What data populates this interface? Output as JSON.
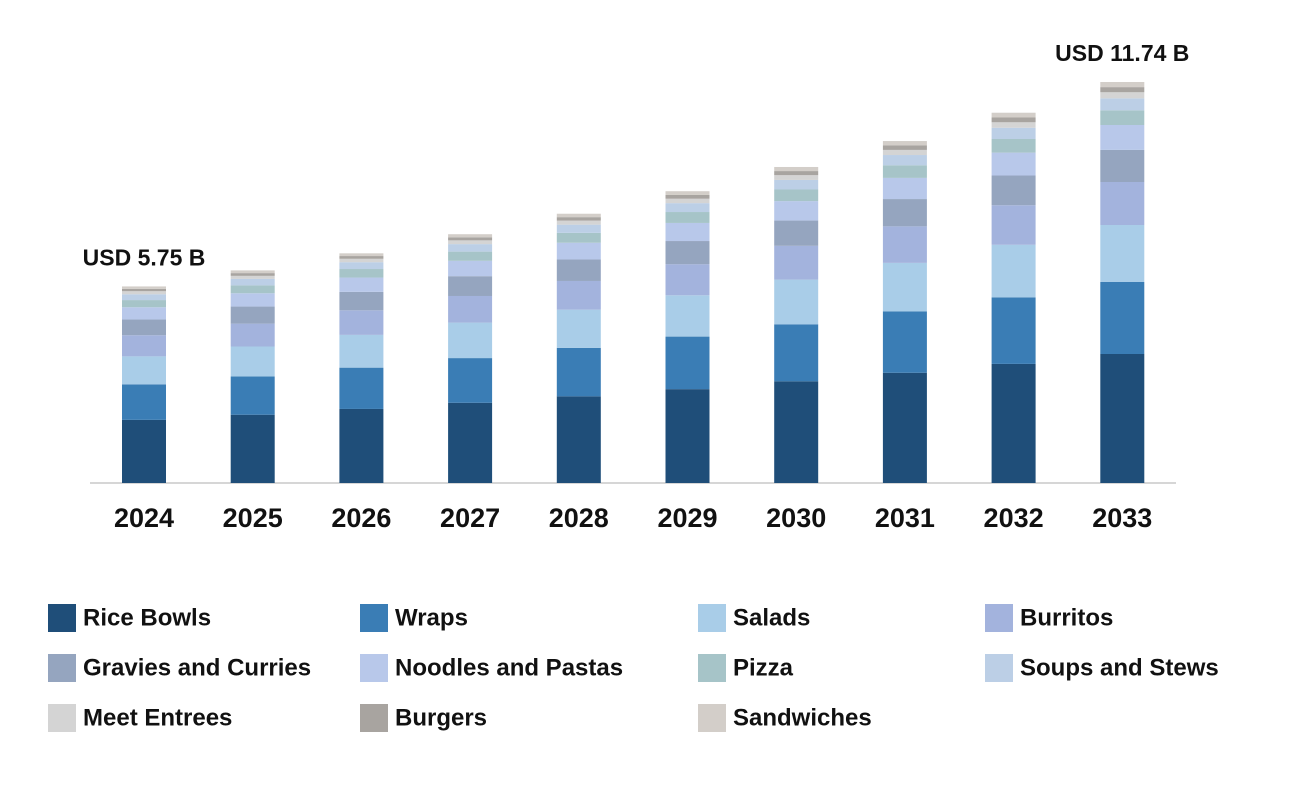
{
  "chart_data": {
    "type": "stacked_bar",
    "categories": [
      "2024",
      "2025",
      "2026",
      "2027",
      "2028",
      "2029",
      "2030",
      "2031",
      "2032",
      "2033"
    ],
    "series": [
      {
        "name": "Rice Bowls",
        "color": "#1f4e79",
        "values": [
          1.85,
          2.0,
          2.17,
          2.35,
          2.54,
          2.75,
          2.98,
          3.23,
          3.49,
          3.78
        ]
      },
      {
        "name": "Wraps",
        "color": "#3a7db5",
        "values": [
          1.04,
          1.12,
          1.21,
          1.31,
          1.42,
          1.54,
          1.67,
          1.8,
          1.95,
          2.11
        ]
      },
      {
        "name": "Salads",
        "color": "#a9cde8",
        "values": [
          0.82,
          0.88,
          0.96,
          1.04,
          1.12,
          1.21,
          1.31,
          1.42,
          1.54,
          1.67
        ]
      },
      {
        "name": "Burritos",
        "color": "#a3b3dd",
        "values": [
          0.62,
          0.67,
          0.72,
          0.78,
          0.84,
          0.91,
          0.99,
          1.07,
          1.16,
          1.26
        ]
      },
      {
        "name": "Gravies and Curries",
        "color": "#95a5bf",
        "values": [
          0.46,
          0.5,
          0.54,
          0.58,
          0.63,
          0.68,
          0.74,
          0.8,
          0.87,
          0.94
        ]
      },
      {
        "name": "Noodles and Pastas",
        "color": "#b8c8ea",
        "values": [
          0.36,
          0.39,
          0.42,
          0.45,
          0.49,
          0.53,
          0.57,
          0.62,
          0.67,
          0.73
        ]
      },
      {
        "name": "Pizza",
        "color": "#a6c4c8",
        "values": [
          0.21,
          0.23,
          0.25,
          0.27,
          0.29,
          0.32,
          0.34,
          0.37,
          0.4,
          0.43
        ]
      },
      {
        "name": "Soups and Stews",
        "color": "#bccfe6",
        "values": [
          0.17,
          0.19,
          0.2,
          0.22,
          0.24,
          0.26,
          0.28,
          0.3,
          0.33,
          0.35
        ]
      },
      {
        "name": "Meet Entrees",
        "color": "#d4d4d4",
        "values": [
          0.09,
          0.09,
          0.1,
          0.11,
          0.12,
          0.13,
          0.14,
          0.15,
          0.16,
          0.18
        ]
      },
      {
        "name": "Burgers",
        "color": "#a8a4a0",
        "values": [
          0.07,
          0.08,
          0.08,
          0.09,
          0.1,
          0.11,
          0.12,
          0.13,
          0.14,
          0.15
        ]
      },
      {
        "name": "Sandwiches",
        "color": "#d3cec9",
        "values": [
          0.07,
          0.08,
          0.08,
          0.09,
          0.1,
          0.11,
          0.12,
          0.13,
          0.14,
          0.15
        ]
      }
    ],
    "annotations": [
      {
        "text": "USD 5.75 B",
        "x": "2024"
      },
      {
        "text": "USD 11.74 B",
        "x": "2033"
      }
    ]
  }
}
